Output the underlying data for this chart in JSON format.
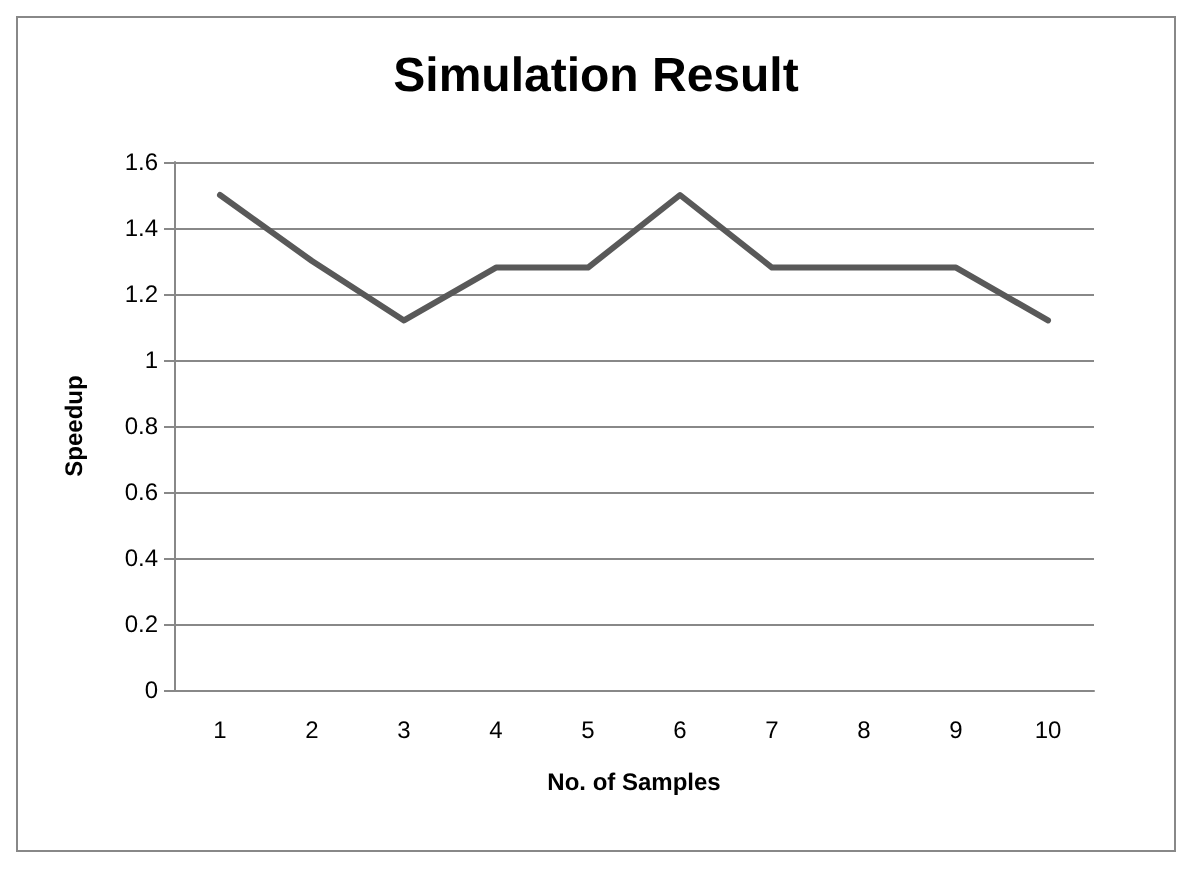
{
  "chart_data": {
    "type": "line",
    "title": "Simulation Result",
    "xlabel": "No. of Samples",
    "ylabel": "Speedup",
    "categories": [
      "1",
      "2",
      "3",
      "4",
      "5",
      "6",
      "7",
      "8",
      "9",
      "10"
    ],
    "series": [
      {
        "color": "#595959",
        "values": [
          1.5,
          1.3,
          1.12,
          1.28,
          1.28,
          1.5,
          1.28,
          1.28,
          1.28,
          1.12
        ]
      }
    ],
    "ylim": [
      0,
      1.6
    ],
    "yticks": [
      0,
      0.2,
      0.4,
      0.6,
      0.8,
      1,
      1.2,
      1.4,
      1.6
    ],
    "grid": "y",
    "marker": "none",
    "line_style": "solid"
  }
}
